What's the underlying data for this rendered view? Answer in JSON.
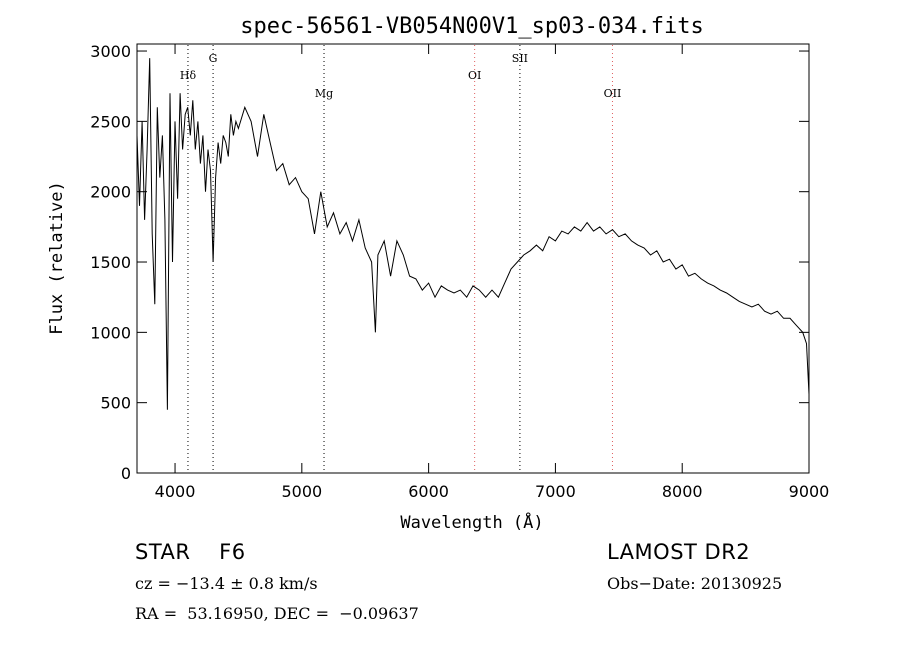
{
  "chart_data": {
    "type": "line",
    "title": "spec-56561-VB054N00V1_sp03-034.fits",
    "xlabel": "Wavelength (Å)",
    "ylabel": "Flux (relative)",
    "xlim": [
      3700,
      9000
    ],
    "ylim": [
      0,
      3050
    ],
    "x_ticks": [
      4000,
      5000,
      6000,
      7000,
      8000,
      9000
    ],
    "y_ticks": [
      0,
      500,
      1000,
      1500,
      2000,
      2500,
      3000
    ],
    "grid": false,
    "lines": [
      {
        "label": "Hδ",
        "wavelength": 4102,
        "color": "#000000"
      },
      {
        "label": "G",
        "wavelength": 4300,
        "color": "#000000"
      },
      {
        "label": "Mg",
        "wavelength": 5175,
        "color": "#000000"
      },
      {
        "label": "OI",
        "wavelength": 6363,
        "color": "#e06060"
      },
      {
        "label": "SII",
        "wavelength": 6720,
        "color": "#000000"
      },
      {
        "label": "OII",
        "wavelength": 7450,
        "color": "#e06060"
      }
    ],
    "series": [
      {
        "x": [
          3700,
          3720,
          3740,
          3760,
          3780,
          3800,
          3820,
          3840,
          3860,
          3880,
          3900,
          3920,
          3940,
          3960,
          3980,
          4000,
          4020,
          4040,
          4060,
          4080,
          4100,
          4120,
          4140,
          4160,
          4180,
          4200,
          4220,
          4240,
          4260,
          4280,
          4300,
          4320,
          4340,
          4360,
          4380,
          4400,
          4420,
          4440,
          4460,
          4480,
          4500,
          4550,
          4600,
          4650,
          4700,
          4750,
          4800,
          4850,
          4900,
          4950,
          5000,
          5050,
          5100,
          5150,
          5200,
          5250,
          5300,
          5350,
          5400,
          5450,
          5500,
          5550,
          5580,
          5600,
          5650,
          5700,
          5750,
          5800,
          5850,
          5900,
          5950,
          6000,
          6050,
          6100,
          6150,
          6200,
          6250,
          6300,
          6350,
          6400,
          6450,
          6500,
          6550,
          6600,
          6650,
          6700,
          6750,
          6800,
          6850,
          6900,
          6950,
          7000,
          7050,
          7100,
          7150,
          7200,
          7250,
          7300,
          7350,
          7400,
          7450,
          7500,
          7550,
          7600,
          7650,
          7700,
          7750,
          7800,
          7850,
          7900,
          7950,
          8000,
          8050,
          8100,
          8150,
          8200,
          8250,
          8300,
          8350,
          8400,
          8450,
          8500,
          8550,
          8600,
          8650,
          8700,
          8750,
          8800,
          8850,
          8900,
          8950,
          8980,
          9000
        ],
        "y": [
          2400,
          1900,
          2500,
          1800,
          2300,
          2950,
          1700,
          1200,
          2600,
          2100,
          2400,
          1800,
          450,
          2700,
          1500,
          2500,
          1950,
          2700,
          2300,
          2550,
          2600,
          2400,
          2650,
          2300,
          2500,
          2200,
          2400,
          2000,
          2300,
          2150,
          1500,
          2100,
          2350,
          2200,
          2400,
          2350,
          2250,
          2550,
          2400,
          2500,
          2450,
          2600,
          2500,
          2250,
          2550,
          2350,
          2150,
          2200,
          2050,
          2100,
          2000,
          1950,
          1700,
          2000,
          1750,
          1850,
          1700,
          1780,
          1650,
          1800,
          1600,
          1500,
          1000,
          1550,
          1650,
          1400,
          1650,
          1550,
          1400,
          1380,
          1300,
          1350,
          1250,
          1330,
          1300,
          1280,
          1300,
          1250,
          1330,
          1300,
          1250,
          1300,
          1250,
          1350,
          1450,
          1500,
          1550,
          1580,
          1620,
          1580,
          1680,
          1650,
          1720,
          1700,
          1750,
          1720,
          1780,
          1720,
          1750,
          1700,
          1730,
          1680,
          1700,
          1650,
          1620,
          1600,
          1550,
          1580,
          1500,
          1520,
          1450,
          1480,
          1400,
          1420,
          1380,
          1350,
          1330,
          1300,
          1280,
          1250,
          1220,
          1200,
          1180,
          1200,
          1150,
          1130,
          1150,
          1100,
          1100,
          1050,
          1000,
          920,
          560
        ]
      }
    ]
  },
  "info": {
    "object": "STAR    F6",
    "cz": "cz = −13.4 ± 0.8 km/s",
    "coords": "RA =  53.16950, DEC =  −0.09637",
    "survey": "LAMOST DR2",
    "obs_date": "Obs−Date: 20130925"
  }
}
